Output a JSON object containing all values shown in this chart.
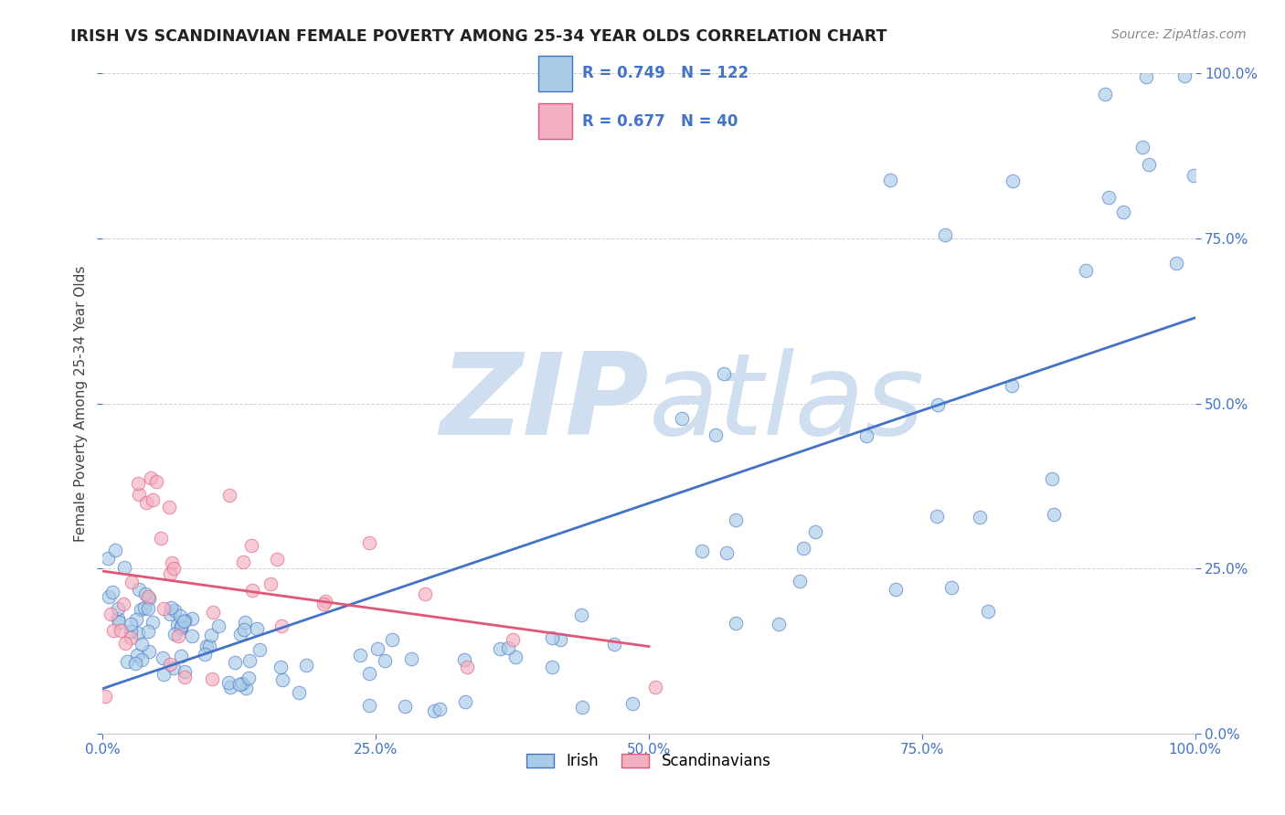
{
  "title": "IRISH VS SCANDINAVIAN FEMALE POVERTY AMONG 25-34 YEAR OLDS CORRELATION CHART",
  "source": "Source: ZipAtlas.com",
  "ylabel": "Female Poverty Among 25-34 Year Olds",
  "xlim": [
    0,
    1
  ],
  "ylim": [
    0,
    1
  ],
  "xticks": [
    0.0,
    0.25,
    0.5,
    0.75,
    1.0
  ],
  "yticks": [
    0.0,
    0.25,
    0.5,
    0.75,
    1.0
  ],
  "xticklabels": [
    "0.0%",
    "25.0%",
    "50.0%",
    "75.0%",
    "100.0%"
  ],
  "yticklabels": [
    "0.0%",
    "25.0%",
    "50.0%",
    "75.0%",
    "100.0%"
  ],
  "irish_color": "#a8cce8",
  "scandinavian_color": "#f4afc0",
  "irish_R": 0.749,
  "irish_N": 122,
  "scandinavian_R": 0.677,
  "scandinavian_N": 40,
  "irish_line_color": "#4472c4",
  "scandinavian_line_color": "#e05878",
  "watermark_zip": "ZIP",
  "watermark_atlas": "atlas",
  "watermark_color": "#d0dff0",
  "legend_irish_label": "Irish",
  "legend_scandinavian_label": "Scandinavians",
  "legend_text_color": "#4472c4",
  "title_color": "#222222",
  "source_color": "#888888",
  "ylabel_color": "#444444",
  "grid_color": "#cccccc",
  "spine_color": "#cccccc"
}
